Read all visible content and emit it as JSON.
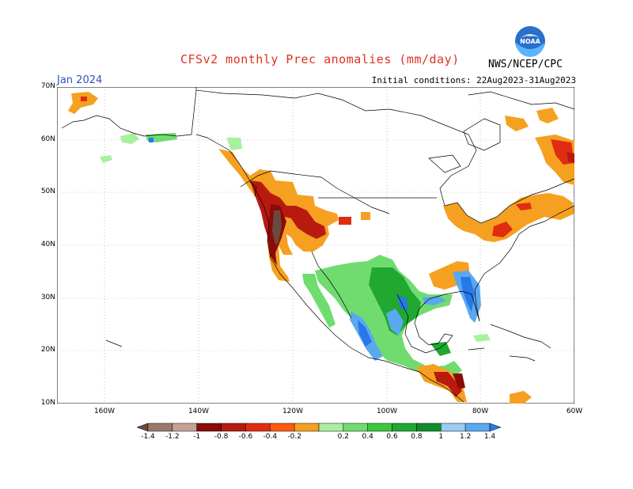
{
  "title": "CFSv2 monthly Prec anomalies (mm/day)",
  "month": "Jan 2024",
  "initial_conditions": "Initial conditions: 22Aug2023-31Aug2023",
  "agency": "NWS/NCEP/CPC",
  "logo": {
    "icon": "noaa-logo-icon",
    "text": "NOAA"
  },
  "latitude_labels": [
    "70N",
    "60N",
    "50N",
    "40N",
    "30N",
    "20N",
    "10N"
  ],
  "longitude_labels": [
    "160W",
    "140W",
    "120W",
    "100W",
    "80W",
    "60W"
  ],
  "colorbar": {
    "labels": [
      "-1.4",
      "-1.2",
      "-1",
      "-0.8",
      "-0.6",
      "-0.4",
      "-0.2",
      "0.2",
      "0.4",
      "0.6",
      "0.8",
      "1",
      "1.2",
      "1.4"
    ],
    "colors": [
      "#6b4a3e",
      "#9a7a6c",
      "#c4a294",
      "#8c0a0a",
      "#b81a10",
      "#e02c10",
      "#ff5a10",
      "#f5a020",
      "#a8f0a0",
      "#70dc70",
      "#3cc83c",
      "#20a830",
      "#108c2c",
      "#98ccf0",
      "#5aa8f0",
      "#2878e8"
    ]
  },
  "colors": {
    "title": "#e03020",
    "month": "#3050c0",
    "dry_strong": "#b81a10",
    "dry_weak": "#f5a020",
    "wet_weak": "#70dc70",
    "wet_strong": "#2878e8"
  }
}
